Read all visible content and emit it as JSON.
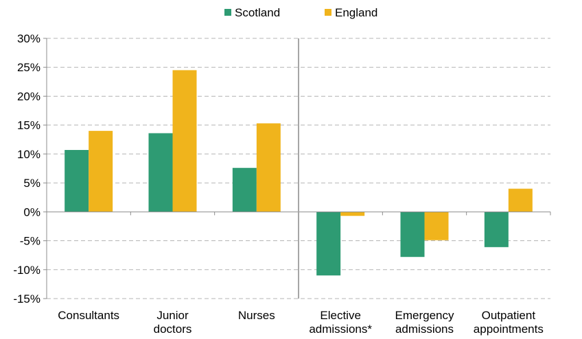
{
  "chart_data": {
    "type": "bar",
    "categories": [
      [
        "Consultants"
      ],
      [
        "Junior",
        "doctors"
      ],
      [
        "Nurses"
      ],
      [
        "Elective",
        "admissions*"
      ],
      [
        "Emergency",
        "admissions"
      ],
      [
        "Outpatient",
        "appointments"
      ]
    ],
    "series": [
      {
        "name": "Scotland",
        "color": "#2e9b73",
        "values": [
          10.7,
          13.6,
          7.6,
          -11.0,
          -7.8,
          -6.1
        ]
      },
      {
        "name": "England",
        "color": "#f0b41c",
        "values": [
          14.0,
          24.5,
          15.3,
          -0.7,
          -4.9,
          4.0
        ]
      }
    ],
    "ylim": [
      -15,
      30
    ],
    "yticks": [
      30,
      25,
      20,
      15,
      10,
      5,
      0,
      -5,
      -10,
      -15
    ],
    "ytick_labels": [
      "30%",
      "25%",
      "20%",
      "15%",
      "10%",
      "5%",
      "0%",
      "-5%",
      "-10%",
      "-15%"
    ],
    "grid": true,
    "legend_position": "top-center",
    "divider_after_category": 2
  }
}
